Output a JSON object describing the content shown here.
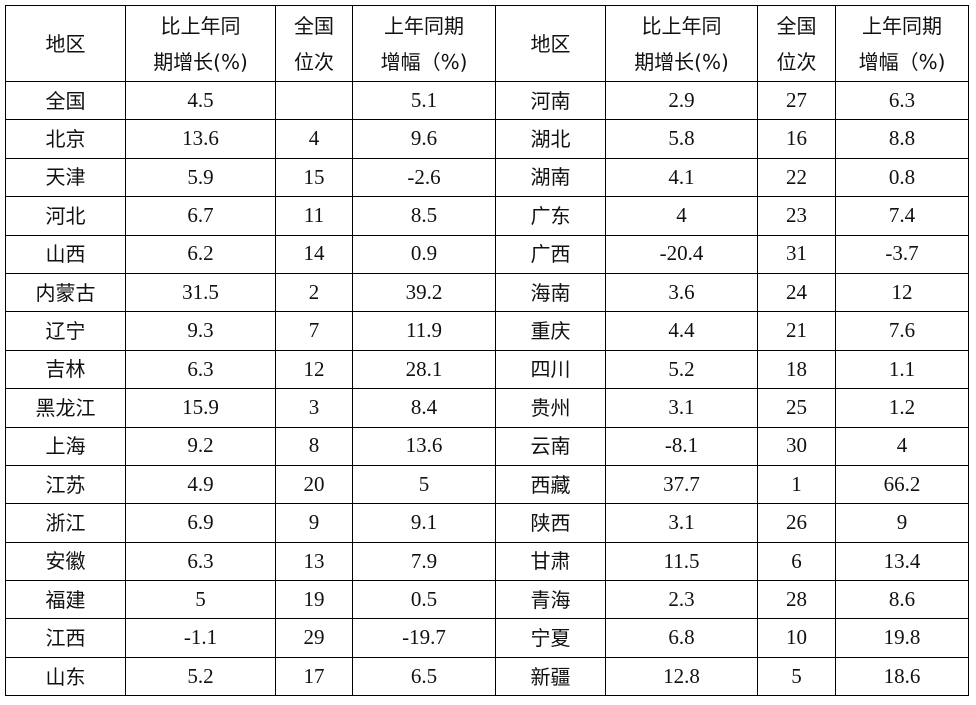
{
  "header_lines": [
    [
      "地区"
    ],
    [
      "比上年同",
      "期增长(%)"
    ],
    [
      "全国",
      "位次"
    ],
    [
      "上年同期",
      "增幅（%)"
    ]
  ],
  "rows": [
    {
      "left": [
        "全国",
        "4.5",
        "",
        "5.1"
      ],
      "right": [
        "河南",
        "2.9",
        "27",
        "6.3"
      ]
    },
    {
      "left": [
        "北京",
        "13.6",
        "4",
        "9.6"
      ],
      "right": [
        "湖北",
        "5.8",
        "16",
        "8.8"
      ]
    },
    {
      "left": [
        "天津",
        "5.9",
        "15",
        "-2.6"
      ],
      "right": [
        "湖南",
        "4.1",
        "22",
        "0.8"
      ]
    },
    {
      "left": [
        "河北",
        "6.7",
        "11",
        "8.5"
      ],
      "right": [
        "广东",
        "4",
        "23",
        "7.4"
      ]
    },
    {
      "left": [
        "山西",
        "6.2",
        "14",
        "0.9"
      ],
      "right": [
        "广西",
        "-20.4",
        "31",
        "-3.7"
      ]
    },
    {
      "left": [
        "内蒙古",
        "31.5",
        "2",
        "39.2"
      ],
      "right": [
        "海南",
        "3.6",
        "24",
        "12"
      ]
    },
    {
      "left": [
        "辽宁",
        "9.3",
        "7",
        "11.9"
      ],
      "right": [
        "重庆",
        "4.4",
        "21",
        "7.6"
      ]
    },
    {
      "left": [
        "吉林",
        "6.3",
        "12",
        "28.1"
      ],
      "right": [
        "四川",
        "5.2",
        "18",
        "1.1"
      ]
    },
    {
      "left": [
        "黑龙江",
        "15.9",
        "3",
        "8.4"
      ],
      "right": [
        "贵州",
        "3.1",
        "25",
        "1.2"
      ]
    },
    {
      "left": [
        "上海",
        "9.2",
        "8",
        "13.6"
      ],
      "right": [
        "云南",
        "-8.1",
        "30",
        "4"
      ]
    },
    {
      "left": [
        "江苏",
        "4.9",
        "20",
        "5"
      ],
      "right": [
        "西藏",
        "37.7",
        "1",
        "66.2"
      ]
    },
    {
      "left": [
        "浙江",
        "6.9",
        "9",
        "9.1"
      ],
      "right": [
        "陕西",
        "3.1",
        "26",
        "9"
      ]
    },
    {
      "left": [
        "安徽",
        "6.3",
        "13",
        "7.9"
      ],
      "right": [
        "甘肃",
        "11.5",
        "6",
        "13.4"
      ]
    },
    {
      "left": [
        "福建",
        "5",
        "19",
        "0.5"
      ],
      "right": [
        "青海",
        "2.3",
        "28",
        "8.6"
      ]
    },
    {
      "left": [
        "江西",
        "-1.1",
        "29",
        "-19.7"
      ],
      "right": [
        "宁夏",
        "6.8",
        "10",
        "19.8"
      ]
    },
    {
      "left": [
        "山东",
        "5.2",
        "17",
        "6.5"
      ],
      "right": [
        "新疆",
        "12.8",
        "5",
        "18.6"
      ]
    }
  ]
}
